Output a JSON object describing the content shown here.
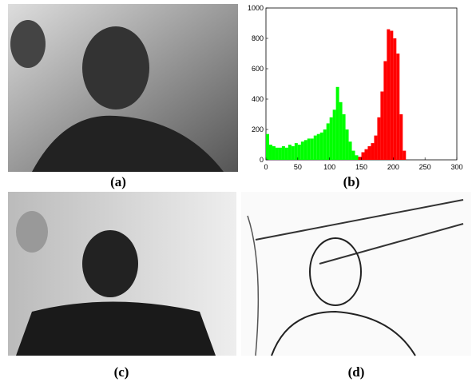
{
  "captions": {
    "a": "(a)",
    "b": "(b)",
    "c": "(c)",
    "d": "(d)"
  },
  "chart_data": {
    "type": "histogram",
    "series": [
      {
        "color": "#00ff00",
        "bins": [
          0,
          5,
          10,
          15,
          20,
          25,
          30,
          35,
          40,
          45,
          50,
          55,
          60,
          65,
          70,
          75,
          80,
          85,
          90,
          95,
          100,
          105,
          110,
          115,
          120,
          125,
          130,
          135,
          140,
          145
        ],
        "values": [
          170,
          100,
          90,
          80,
          80,
          90,
          80,
          100,
          90,
          110,
          100,
          120,
          130,
          140,
          140,
          160,
          170,
          180,
          200,
          240,
          280,
          330,
          480,
          380,
          300,
          200,
          120,
          60,
          30
        ]
      },
      {
        "color": "#ff0000",
        "bins": [
          145,
          150,
          155,
          160,
          165,
          170,
          175,
          180,
          185,
          190,
          195,
          200,
          205,
          210,
          215,
          220
        ],
        "values": [
          20,
          50,
          70,
          90,
          110,
          160,
          280,
          450,
          650,
          860,
          850,
          800,
          700,
          300,
          60
        ]
      }
    ],
    "xlim": [
      0,
      300
    ],
    "xticks": [
      0,
      50,
      100,
      150,
      200,
      250,
      300
    ],
    "ylim": [
      0,
      1000
    ],
    "yticks": [
      0,
      200,
      400,
      600,
      800,
      1000
    ]
  }
}
